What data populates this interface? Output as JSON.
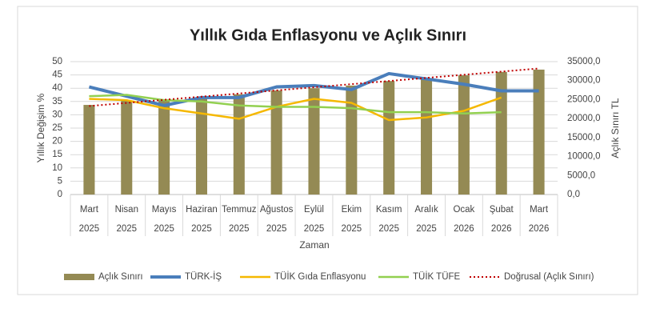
{
  "chart_data": {
    "type": "bar-line",
    "title": "Yıllık Gıda Enflasyonu ve Açlık Sınırı",
    "x_label": "Zaman",
    "y_label": "Yıllık Değişim %",
    "y2_label": "Açlık Sınırı TL",
    "categories": [
      "Mart",
      "Nisan",
      "Mayıs",
      "Haziran",
      "Temmuz",
      "Ağustos",
      "Eylül",
      "Ekim",
      "Kasım",
      "Aralık",
      "Ocak",
      "Şubat",
      "Mart"
    ],
    "category_years": [
      "2025",
      "2025",
      "2025",
      "2025",
      "2025",
      "2025",
      "2025",
      "2025",
      "2025",
      "2025",
      "2026",
      "2026",
      "2026"
    ],
    "ylim": [
      0,
      50
    ],
    "yticks": [
      0,
      5,
      10,
      15,
      20,
      25,
      30,
      35,
      40,
      45,
      50
    ],
    "y2lim": [
      0,
      35000
    ],
    "y2ticks": [
      {
        "value": 0,
        "label": "0,0"
      },
      {
        "value": 5000,
        "label": "5000,0"
      },
      {
        "value": 10000,
        "label": "10000,0"
      },
      {
        "value": 15000,
        "label": "15000,0"
      },
      {
        "value": 20000,
        "label": "20000,0"
      },
      {
        "value": 25000,
        "label": "25000,0"
      },
      {
        "value": 30000,
        "label": "30000,0"
      },
      {
        "value": 35000,
        "label": "35000,0"
      }
    ],
    "grid": true,
    "series": [
      {
        "name": "Açlık Sınırı",
        "kind": "bar",
        "axis": "y2",
        "color": "#948a54",
        "values": [
          23600,
          24700,
          25100,
          25700,
          26400,
          27400,
          28000,
          28700,
          29900,
          30600,
          31400,
          32300,
          32900
        ]
      },
      {
        "name": "TÜRK-İŞ",
        "kind": "line",
        "color": "#4a7ebb",
        "width": 4,
        "values": [
          40.5,
          37,
          33.5,
          36.5,
          36.5,
          40.5,
          41,
          39.5,
          45.5,
          43.5,
          41.5,
          39,
          39
        ]
      },
      {
        "name": "TÜİK Gıda Enflasyonu",
        "kind": "line",
        "color": "#f5b800",
        "width": 2.5,
        "values": [
          36,
          35.5,
          32.5,
          30.5,
          28.5,
          33,
          36,
          34.5,
          28,
          29,
          31.5,
          36.5,
          null
        ]
      },
      {
        "name": "TÜİK TÜFE",
        "kind": "line",
        "color": "#92d050",
        "width": 2.5,
        "values": [
          37,
          37.5,
          35.5,
          35,
          33.5,
          33,
          33,
          32.5,
          31,
          31,
          30.5,
          31,
          null
        ]
      },
      {
        "name": "Doğrusal (Açlık Sınırı)",
        "kind": "line",
        "axis": "y2",
        "dashed": true,
        "color": "#c00000",
        "width": 2,
        "values": [
          23300,
          24125,
          24950,
          25775,
          26600,
          27425,
          28250,
          29075,
          29900,
          30725,
          31550,
          32375,
          33200
        ]
      }
    ]
  }
}
